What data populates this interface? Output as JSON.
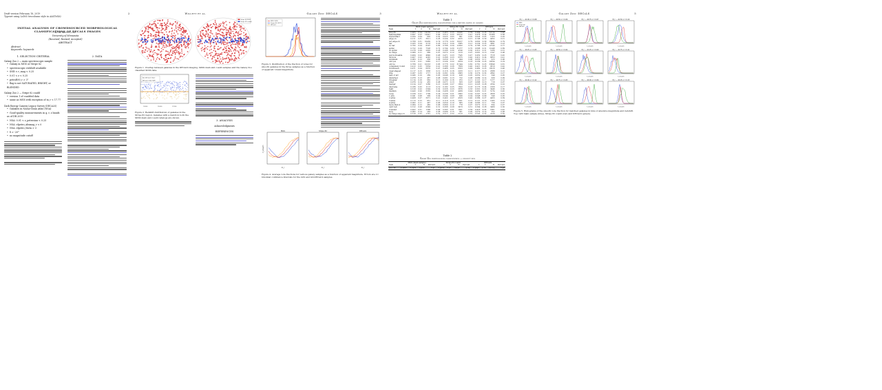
{
  "page1": {
    "header_left": "Draft version February 18, 2019",
    "header_left2": "Typeset using LaTeX twocolumn style in AASTeX62",
    "title": "INITIAL ANALYSIS OF CROWDSOURCED MORPHOLOGICAL CLASSIFICATIONS OF DECALS IMAGES",
    "author": "K. W. Willett et al.",
    "affiliation": "University of Minnesota",
    "received": "(Received; Revised; Accepted)",
    "abstract_head": "ABSTRACT",
    "abstract_label": "Abstract.",
    "keywords": "Keywords: keywords",
    "sec1_head": "1. SELECTION CRITERIA",
    "gz2_head": "Galaxy Zoo 2 — main spectroscopic sample",
    "gz2_items": [
      "Galaxy in MGS or Stripe 82",
      "spectroscopic redshift available",
      "SNR < r_mag < 0.25",
      "0.01 < z < 0.25",
      "petroR90_r > 3\"",
      "flag is not SATURATED, BRIGHT, or BLENDED"
    ],
    "gz2b_head": "Galaxy Zoo 2 — Stripe 82 coadd",
    "gz2b_items": [
      "version 1 of coadded data",
      "same as MGS with exception of m_r < 17.77"
    ],
    "decals_head": "Dark Energy Camera Legacy Survey (DECaLS)",
    "decals_items": [
      "Galaxies in NASA-Sloan Atlas (NSA)",
      "Good-quality measurements in g, r, z bands as of DR 2019",
      "NSA: 0.01 < z_petrosian < 0.25",
      "NSA: elpetro_absmag_r < 0",
      "NSA: elpetro_theta > 3",
      "δ > -20°",
      "no magnitude cutoff"
    ],
    "page_num": "2"
  },
  "page2": {
    "sec2_head": "2. DATA",
    "fig1_caption": "Figure 1. Overlap between galaxies in the DECaLS imaging, SDSS main and coadd samples and the Galaxy Zoo classified SDSS data.",
    "fig2_caption": "Figure 2. Redshift distribution of galaxies in the Stripe 82 region. Galaxies with a match in both the SDSS main and coadd catalogs are shown.",
    "legend_labels": [
      "Stripe 82 MGS",
      "Stripe 82 coadd",
      "DECaLS"
    ],
    "legend_labels_b": [
      "Not DECaLS (GZ2)",
      "DECaLS (GZ2+DR)"
    ],
    "sec3_head": "3. ANALYSIS",
    "ack": "Acknowledgments",
    "refs_head": "REFERENCES"
  },
  "page2b": {
    "header_center": "Willett et al.",
    "page_num": "3"
  },
  "page3": {
    "header_center": "Galaxy Zoo: DECaLS",
    "page_num": "3",
    "fig3_caption": "Figure 3. Distribution of the fraction of votes for smooth galaxies in the three samples as a function of apparent r-band magnitude.",
    "hist_legend": [
      "MGS (GZ2)",
      "Stripe 82 (GZ2)",
      "DECaLS"
    ],
    "panel_titles": [
      "MGS",
      "Stripe 82",
      "DECaLS"
    ],
    "fig4_caption": "Figure 4. Average vote fractions for various galaxy samples as a function of apparent magnitude. Errors are 1σ binomial confidence intervals for the GZ2 and GZ-DECaLS samples.",
    "xlabel": "m_r",
    "ylabel": "f_smooth"
  },
  "page4": {
    "header_center": "Willett et al.",
    "page_num": "4",
    "table1_title": "Table 1",
    "table1_caption": "Galaxy Zoo morphological classifications for a matched sample of galaxies",
    "col_groups": [
      "MGS (main sample)",
      "Stripe 82 coadd",
      "DECaLS"
    ],
    "col_sub": [
      "Task",
      "f",
      "σ",
      "N",
      "Percent",
      "f",
      "σ",
      "N",
      "Percent",
      "f",
      "σ",
      "N",
      "Percent"
    ],
    "rows": [
      [
        "smooth",
        "0.483",
        "0.24",
        "14162",
        "0.41",
        "0.463",
        "0.25",
        "19245",
        "0.39",
        "0.494",
        "0.26",
        "22114",
        "0.40"
      ],
      [
        "features/disk",
        "0.497",
        "0.23",
        "14041",
        "0.40",
        "0.512",
        "0.25",
        "20122",
        "0.41",
        "0.478",
        "0.24",
        "21086",
        "0.38"
      ],
      [
        "star/artifact",
        "0.020",
        "0.04",
        "602",
        "0.02",
        "0.025",
        "0.05",
        "891",
        "0.02",
        "0.028",
        "0.05",
        "1203",
        "0.02"
      ],
      [
        "edge-on",
        "0.211",
        "0.31",
        "3611",
        "0.26",
        "0.224",
        "0.32",
        "4105",
        "0.21",
        "0.198",
        "0.30",
        "4452",
        "0.21"
      ],
      [
        "not edge-on",
        "0.789",
        "0.31",
        "10430",
        "0.74",
        "0.776",
        "0.32",
        "16017",
        "0.79",
        "0.802",
        "0.30",
        "16634",
        "0.79"
      ],
      [
        "bar",
        "0.205",
        "0.24",
        "2133",
        "0.20",
        "0.212",
        "0.24",
        "3385",
        "0.21",
        "0.234",
        "0.25",
        "3891",
        "0.23"
      ],
      [
        "no bar",
        "0.795",
        "0.24",
        "8297",
        "0.80",
        "0.788",
        "0.24",
        "12632",
        "0.79",
        "0.766",
        "0.25",
        "12743",
        "0.77"
      ],
      [
        "spiral",
        "0.722",
        "0.29",
        "7528",
        "0.72",
        "0.704",
        "0.30",
        "11277",
        "0.70",
        "0.688",
        "0.31",
        "11448",
        "0.69"
      ],
      [
        "no spiral",
        "0.278",
        "0.29",
        "2902",
        "0.28",
        "0.296",
        "0.30",
        "4740",
        "0.30",
        "0.312",
        "0.31",
        "5186",
        "0.31"
      ],
      [
        "no bulge",
        "0.066",
        "0.11",
        "689",
        "0.07",
        "0.072",
        "0.12",
        "1153",
        "0.07",
        "0.081",
        "0.13",
        "1347",
        "0.08"
      ],
      [
        "just noticeable",
        "0.464",
        "0.22",
        "4840",
        "0.46",
        "0.471",
        "0.23",
        "7545",
        "0.47",
        "0.452",
        "0.23",
        "7518",
        "0.45"
      ],
      [
        "obvious",
        "0.407",
        "0.22",
        "4245",
        "0.41",
        "0.398",
        "0.23",
        "6375",
        "0.40",
        "0.412",
        "0.24",
        "6853",
        "0.41"
      ],
      [
        "dominant",
        "0.063",
        "0.12",
        "656",
        "0.06",
        "0.059",
        "0.11",
        "944",
        "0.06",
        "0.055",
        "0.11",
        "915",
        "0.06"
      ],
      [
        "odd yes",
        "0.211",
        "0.21",
        "5982",
        "0.17",
        "0.224",
        "0.22",
        "8914",
        "0.18",
        "0.239",
        "0.23",
        "10554",
        "0.19"
      ],
      [
        "odd no",
        "0.789",
        "0.21",
        "22223",
        "0.83",
        "0.776",
        "0.22",
        "31344",
        "0.82",
        "0.761",
        "0.23",
        "33849",
        "0.81"
      ],
      [
        "completely round",
        "0.412",
        "0.25",
        "5834",
        "0.41",
        "0.398",
        "0.26",
        "7659",
        "0.40",
        "0.421",
        "0.26",
        "9310",
        "0.42"
      ],
      [
        "in between",
        "0.471",
        "0.24",
        "6670",
        "0.47",
        "0.486",
        "0.25",
        "9353",
        "0.49",
        "0.462",
        "0.25",
        "10216",
        "0.46"
      ],
      [
        "cigar-shaped",
        "0.117",
        "0.15",
        "1658",
        "0.12",
        "0.116",
        "0.16",
        "2233",
        "0.11",
        "0.117",
        "0.16",
        "2588",
        "0.12"
      ],
      [
        "ring",
        "0.287",
        "0.33",
        "1717",
        "0.29",
        "0.301",
        "0.34",
        "2683",
        "0.30",
        "0.274",
        "0.32",
        "2892",
        "0.27"
      ],
      [
        "lens or arc",
        "0.045",
        "0.10",
        "269",
        "0.05",
        "0.048",
        "0.10",
        "428",
        "0.05",
        "0.052",
        "0.11",
        "549",
        "0.05"
      ],
      [
        "disturbed",
        "0.078",
        "0.13",
        "467",
        "0.08",
        "0.081",
        "0.13",
        "722",
        "0.08",
        "0.089",
        "0.14",
        "939",
        "0.09"
      ],
      [
        "irregular",
        "0.114",
        "0.16",
        "682",
        "0.11",
        "0.109",
        "0.16",
        "972",
        "0.11",
        "0.121",
        "0.17",
        "1277",
        "0.12"
      ],
      [
        "other",
        "0.076",
        "0.14",
        "455",
        "0.08",
        "0.071",
        "0.13",
        "633",
        "0.07",
        "0.068",
        "0.13",
        "718",
        "0.07"
      ],
      [
        "merger",
        "0.214",
        "0.27",
        "1280",
        "0.21",
        "0.208",
        "0.27",
        "1854",
        "0.21",
        "0.223",
        "0.28",
        "2354",
        "0.22"
      ],
      [
        "dust lane",
        "0.186",
        "0.25",
        "1113",
        "0.19",
        "0.182",
        "0.25",
        "1622",
        "0.18",
        "0.173",
        "0.24",
        "1826",
        "0.17"
      ],
      [
        "tight",
        "0.318",
        "0.22",
        "2394",
        "0.32",
        "0.326",
        "0.23",
        "3676",
        "0.33",
        "0.301",
        "0.22",
        "3446",
        "0.30"
      ],
      [
        "medium",
        "0.443",
        "0.20",
        "3335",
        "0.44",
        "0.438",
        "0.21",
        "4939",
        "0.44",
        "0.452",
        "0.21",
        "5174",
        "0.45"
      ],
      [
        "loose",
        "0.239",
        "0.21",
        "1799",
        "0.24",
        "0.236",
        "0.21",
        "2662",
        "0.24",
        "0.247",
        "0.22",
        "2828",
        "0.25"
      ],
      [
        "1 arm",
        "0.041",
        "0.08",
        "309",
        "0.04",
        "0.044",
        "0.08",
        "496",
        "0.04",
        "0.048",
        "0.09",
        "549",
        "0.05"
      ],
      [
        "2 arms",
        "0.408",
        "0.27",
        "3071",
        "0.41",
        "0.402",
        "0.27",
        "4533",
        "0.40",
        "0.389",
        "0.27",
        "4453",
        "0.39"
      ],
      [
        "3 arms",
        "0.113",
        "0.15",
        "851",
        "0.11",
        "0.118",
        "0.15",
        "1331",
        "0.12",
        "0.121",
        "0.16",
        "1385",
        "0.12"
      ],
      [
        "4 arms",
        "0.062",
        "0.11",
        "467",
        "0.06",
        "0.059",
        "0.10",
        "665",
        "0.06",
        "0.066",
        "0.11",
        "756",
        "0.07"
      ],
      [
        "more than 4",
        "0.064",
        "0.12",
        "482",
        "0.06",
        "0.069",
        "0.12",
        "778",
        "0.07",
        "0.072",
        "0.12",
        "824",
        "0.07"
      ],
      [
        "can't tell",
        "0.312",
        "0.28",
        "2349",
        "0.31",
        "0.308",
        "0.28",
        "3473",
        "0.31",
        "0.304",
        "0.28",
        "3480",
        "0.30"
      ],
      [
        "rounded",
        "0.402",
        "0.31",
        "1388",
        "0.40",
        "0.395",
        "0.31",
        "1621",
        "0.39",
        "0.418",
        "0.32",
        "1861",
        "0.42"
      ],
      [
        "boxy",
        "0.082",
        "0.14",
        "283",
        "0.08",
        "0.088",
        "0.15",
        "361",
        "0.09",
        "0.079",
        "0.14",
        "352",
        "0.08"
      ],
      [
        "no bulge edge-on",
        "0.516",
        "0.32",
        "1781",
        "0.52",
        "0.517",
        "0.32",
        "2123",
        "0.52",
        "0.503",
        "0.32",
        "2239",
        "0.50"
      ]
    ],
    "table2_title": "Table 2",
    "table2_caption": "Galaxy Zoo morphological classifications — redshift bins",
    "table2_rows": [
      [
        "smooth",
        "0.4832",
        "0.2431",
        "14162",
        "0.41",
        "0.4630",
        "0.25",
        "19245",
        "0.39",
        "0.4942",
        "0.26",
        "22114",
        "0.40"
      ]
    ]
  },
  "page5": {
    "header_center": "Galaxy Zoo: DECaLS",
    "page_num": "5",
    "grid_titles": [
      [
        "M_r ~ -21.00, z = 0.08",
        "M_r ~ -20.50, z = 0.06",
        "M_r ~ -20.75, z = 0.07",
        "M_r ~ -21.50, z = 0.10"
      ],
      [
        "M_r ~ -20.25, z = 0.05",
        "M_r ~ -19.50, z = 0.04",
        "M_r ~ -21.25, z = 0.09",
        "M_r ~ -21.75, z = 0.11"
      ],
      [
        "M_r ~ -22.00, z = 0.12",
        "M_r ~ -19.75, z = 0.05",
        "M_r ~ -20.00, z = 0.06",
        "M_r ~ -22.25, z = 0.13"
      ]
    ],
    "grid_xlabel": "f_smooth",
    "fig5_caption": "Figure 5. Histograms of the smooth vote fraction for matched galaxies in bins of absolute magnitude and redshift. Top: GZ2 main sample (blue), Stripe 82 coadd (red) and DECaLS (green).",
    "legend": [
      "MGS",
      "Stripe 82",
      "DECaLS"
    ]
  },
  "colors": {
    "red": "#d62728",
    "blue": "#1f3fd6",
    "orange": "#ff9f1a",
    "green": "#2ca02c",
    "cite": "#6b6bd4"
  }
}
